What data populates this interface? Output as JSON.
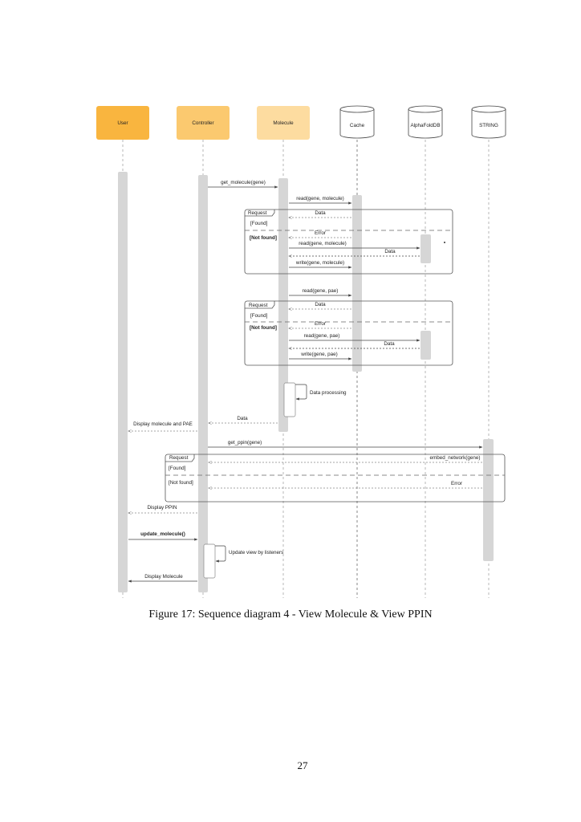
{
  "participants": [
    {
      "id": "user",
      "label": "User",
      "kind": "box",
      "color": "#f9b53f"
    },
    {
      "id": "controller",
      "label": "Controller",
      "kind": "box",
      "color": "#fbc96f"
    },
    {
      "id": "molecule",
      "label": "Molecule",
      "kind": "box",
      "color": "#fddca0"
    },
    {
      "id": "cache",
      "label": "Cache",
      "kind": "database",
      "color": "#ffffff"
    },
    {
      "id": "alphafold",
      "label": "AlphaFoldDB",
      "kind": "database",
      "color": "#ffffff"
    },
    {
      "id": "string",
      "label": "STRING",
      "kind": "database",
      "color": "#ffffff"
    }
  ],
  "messages": [
    {
      "label": "get_molecule(gene)",
      "from": "controller",
      "to": "molecule",
      "style": "solid"
    },
    {
      "label": "read(gene, molecule)",
      "from": "molecule",
      "to": "cache",
      "style": "solid"
    },
    {
      "label": "Data",
      "from": "cache",
      "to": "molecule",
      "style": "dashed"
    },
    {
      "label": "Error",
      "from": "cache",
      "to": "molecule",
      "style": "dashed"
    },
    {
      "label": "read(gene, molecule)",
      "from": "molecule",
      "to": "alphafold",
      "style": "solid"
    },
    {
      "label": "Data",
      "from": "alphafold",
      "to": "molecule",
      "style": "dashed"
    },
    {
      "label": "write(gene, molecule)",
      "from": "molecule",
      "to": "cache",
      "style": "solid"
    },
    {
      "label": "read(gene, pae)",
      "from": "molecule",
      "to": "cache",
      "style": "solid"
    },
    {
      "label": "Data",
      "from": "cache",
      "to": "molecule",
      "style": "dashed"
    },
    {
      "label": "Error",
      "from": "cache",
      "to": "molecule",
      "style": "dashed"
    },
    {
      "label": "read(gene, pae)",
      "from": "molecule",
      "to": "alphafold",
      "style": "solid"
    },
    {
      "label": "Data",
      "from": "alphafold",
      "to": "molecule",
      "style": "dashed"
    },
    {
      "label": "write(gene, pae)",
      "from": "molecule",
      "to": "cache",
      "style": "solid"
    },
    {
      "label": "Data processing",
      "from": "molecule",
      "to": "molecule",
      "style": "self"
    },
    {
      "label": "Data",
      "from": "molecule",
      "to": "controller",
      "style": "dashed"
    },
    {
      "label": "Display molecule and PAE",
      "from": "controller",
      "to": "user",
      "style": "dashed"
    },
    {
      "label": "get_ppin(gene)",
      "from": "controller",
      "to": "string",
      "style": "solid"
    },
    {
      "label": "embed_network(gene)",
      "from": "string",
      "to": "controller",
      "style": "dashed"
    },
    {
      "label": "Error",
      "from": "string",
      "to": "controller",
      "style": "dashed"
    },
    {
      "label": "Display PPIN",
      "from": "controller",
      "to": "user",
      "style": "dashed"
    },
    {
      "label": "update_molecule()",
      "from": "user",
      "to": "controller",
      "style": "solid"
    },
    {
      "label": "Update view by listeners",
      "from": "controller",
      "to": "controller",
      "style": "self"
    },
    {
      "label": "Display Molecule",
      "from": "controller",
      "to": "user",
      "style": "solid"
    }
  ],
  "fragments": [
    {
      "title": "Request",
      "guards": [
        "[Found]",
        "[Not found]"
      ]
    },
    {
      "title": "Request",
      "guards": [
        "[Found]",
        "[Not found]"
      ]
    },
    {
      "title": "Request",
      "guards": [
        "[Found]",
        "[Not found]"
      ]
    }
  ],
  "caption": "Figure 17: Sequence diagram 4 - View Molecule & View PPIN",
  "page_number": "27"
}
